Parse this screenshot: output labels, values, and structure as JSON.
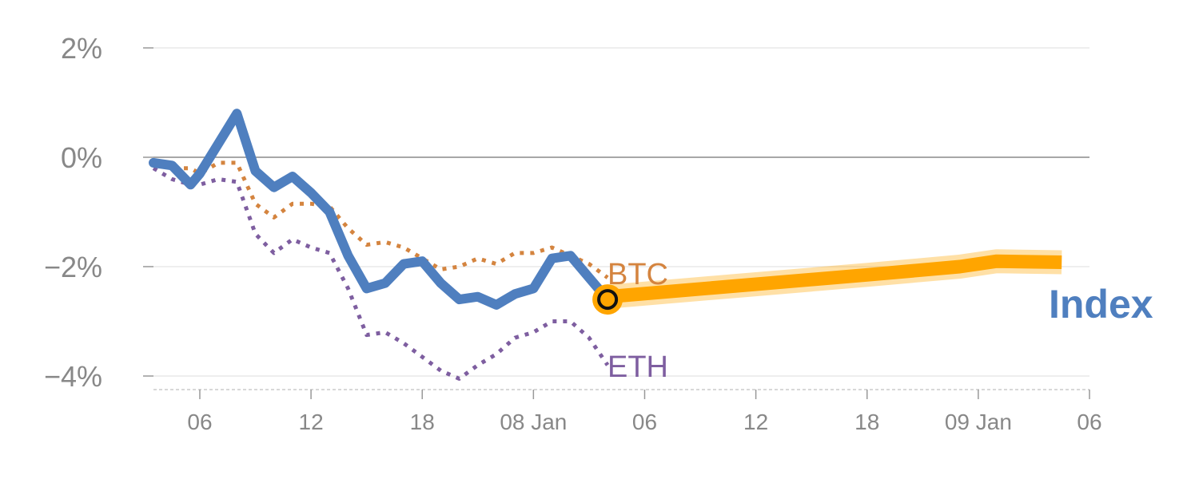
{
  "chart_data": {
    "type": "line",
    "x_unit": "hours",
    "x_tick_labels": [
      {
        "hour": 6,
        "label": "06"
      },
      {
        "hour": 12,
        "label": "12"
      },
      {
        "hour": 18,
        "label": "18"
      },
      {
        "hour": 24,
        "label": "08 Jan"
      },
      {
        "hour": 30,
        "label": "06"
      },
      {
        "hour": 36,
        "label": "12"
      },
      {
        "hour": 42,
        "label": "18"
      },
      {
        "hour": 48,
        "label": "09 Jan"
      },
      {
        "hour": 54,
        "label": "06"
      }
    ],
    "xlim": [
      3.5,
      54
    ],
    "ylim": [
      -4.2,
      2
    ],
    "y_ticks": [
      {
        "value": 2,
        "label": "2%"
      },
      {
        "value": 0,
        "label": "0%"
      },
      {
        "value": -2,
        "label": "−2%"
      },
      {
        "value": -4,
        "label": "−4%"
      }
    ],
    "grid": "horizontal",
    "series": [
      {
        "name": "BTC",
        "style": "dotted",
        "color": "#D4843F",
        "x": [
          3.5,
          4.5,
          5.5,
          6,
          7,
          8,
          9,
          10,
          11,
          12,
          13,
          14,
          15,
          16,
          17,
          18,
          19,
          20,
          21,
          22,
          23,
          24,
          25,
          26,
          27,
          28
        ],
        "y": [
          -0.1,
          -0.2,
          -0.2,
          -0.3,
          -0.1,
          -0.1,
          -0.85,
          -1.1,
          -0.85,
          -0.85,
          -0.9,
          -1.3,
          -1.6,
          -1.55,
          -1.65,
          -1.85,
          -2.05,
          -2.0,
          -1.85,
          -1.95,
          -1.75,
          -1.75,
          -1.65,
          -1.8,
          -1.95,
          -2.2
        ]
      },
      {
        "name": "ETH",
        "style": "dotted",
        "color": "#7E5EA0",
        "x": [
          3.5,
          4.5,
          5.5,
          6,
          7,
          8,
          9,
          10,
          11,
          12,
          13,
          14,
          15,
          16,
          17,
          18,
          19,
          20,
          21,
          22,
          23,
          24,
          25,
          26,
          27,
          28
        ],
        "y": [
          -0.2,
          -0.4,
          -0.5,
          -0.5,
          -0.4,
          -0.45,
          -1.4,
          -1.75,
          -1.5,
          -1.65,
          -1.75,
          -2.4,
          -3.25,
          -3.2,
          -3.4,
          -3.65,
          -3.9,
          -4.05,
          -3.8,
          -3.6,
          -3.3,
          -3.2,
          -3.0,
          -3.0,
          -3.3,
          -3.8
        ]
      },
      {
        "name": "Index",
        "style": "solid",
        "color": "#4F7FBF",
        "x": [
          3.5,
          4.5,
          5.5,
          6,
          7,
          8,
          9,
          10,
          11,
          12,
          13,
          14,
          15,
          16,
          17,
          18,
          19,
          20,
          21,
          22,
          23,
          24,
          25,
          26,
          27,
          28
        ],
        "y": [
          -0.1,
          -0.15,
          -0.5,
          -0.3,
          0.25,
          0.8,
          -0.25,
          -0.55,
          -0.35,
          -0.65,
          -1.0,
          -1.8,
          -2.4,
          -2.3,
          -1.95,
          -1.9,
          -2.3,
          -2.6,
          -2.55,
          -2.7,
          -2.5,
          -2.4,
          -1.85,
          -1.8,
          -2.2,
          -2.6
        ]
      }
    ],
    "forecast": {
      "color": "#FFA500",
      "x": [
        28,
        35,
        42,
        47,
        49,
        52.5
      ],
      "y": [
        -2.55,
        -2.35,
        -2.15,
        -2.0,
        -1.9,
        -1.92
      ],
      "marker_x": 28,
      "marker_y": -2.6
    },
    "annotations": {
      "btc_label": "BTC",
      "eth_label": "ETH",
      "index_label": "Index"
    }
  }
}
